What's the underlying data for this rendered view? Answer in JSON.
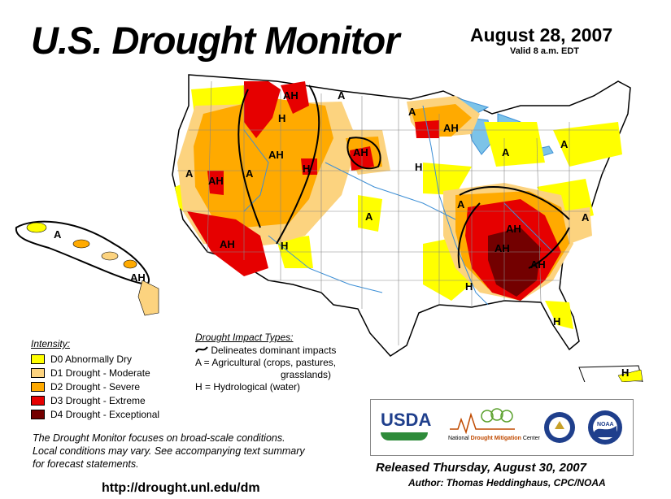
{
  "header": {
    "title": "U.S. Drought Monitor",
    "date": "August 28, 2007",
    "valid": "Valid 8 a.m. EDT"
  },
  "colors": {
    "D0": "#ffff00",
    "D1": "#fcd37f",
    "D2": "#ffaa00",
    "D3": "#e60000",
    "D4": "#730000",
    "water": "#7cc3e8",
    "rivers": "#3d8fd6"
  },
  "legend": {
    "heading": "Intensity:",
    "items": [
      {
        "code": "D0",
        "label": "D0 Abnormally Dry"
      },
      {
        "code": "D1",
        "label": "D1 Drought - Moderate"
      },
      {
        "code": "D2",
        "label": "D2 Drought - Severe"
      },
      {
        "code": "D3",
        "label": "D3 Drought - Extreme"
      },
      {
        "code": "D4",
        "label": "D4 Drought - Exceptional"
      }
    ]
  },
  "impacts": {
    "heading": "Drought Impact Types:",
    "delineates": "Delineates dominant impacts",
    "ag_line1": "A = Agricultural (crops, pastures,",
    "ag_line2": "grasslands)",
    "hydro": "H = Hydrological (water)"
  },
  "map_labels": {
    "hawaii": "A",
    "hawaii_ah": "AH",
    "pr": "H",
    "regions": [
      "AH",
      "A",
      "H",
      "AH",
      "AH",
      "H",
      "A",
      "AH",
      "A",
      "AH",
      "H",
      "A",
      "AH",
      "A",
      "A",
      "H",
      "A",
      "AH",
      "A",
      "AH",
      "AH",
      "H",
      "A",
      "H"
    ]
  },
  "note": {
    "line1": "The Drought Monitor focuses on broad-scale conditions.",
    "line2": "Local conditions may vary.  See accompanying text summary",
    "line3": "for forecast statements."
  },
  "url": "http://drought.unl.edu/dm",
  "logos": {
    "usda": "USDA",
    "ndmc_prefix": "National",
    "ndmc_name": "Drought Mitigation",
    "ndmc_suffix": "Center",
    "noaa": "NOAA"
  },
  "released": "Released Thursday, August 30, 2007",
  "author": "Author: Thomas Heddinghaus, CPC/NOAA"
}
